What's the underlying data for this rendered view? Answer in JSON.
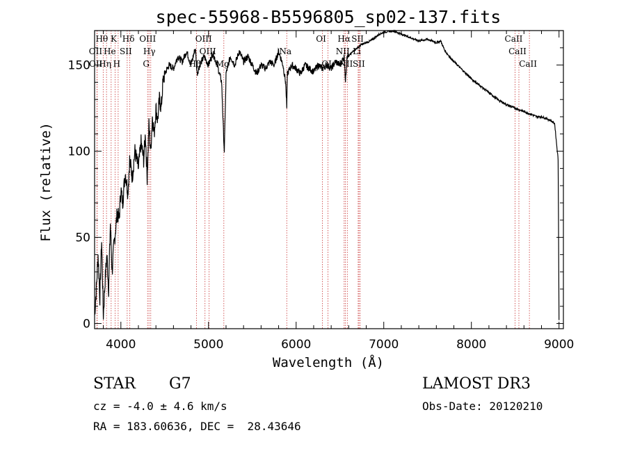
{
  "chart_data": {
    "type": "line",
    "title": "spec-55968-B5596805_sp02-137.fits",
    "xlabel": "Wavelength (Å)",
    "ylabel": "Flux (relative)",
    "xlim": [
      3700,
      9050
    ],
    "ylim": [
      -3,
      170
    ],
    "xticks": [
      4000,
      5000,
      6000,
      7000,
      8000,
      9000
    ],
    "yticks": [
      0,
      50,
      100,
      150
    ],
    "series": [
      {
        "name": "flux",
        "x": [
          3700,
          3720,
          3740,
          3760,
          3780,
          3800,
          3820,
          3840,
          3860,
          3880,
          3900,
          3920,
          3940,
          3960,
          3980,
          4000,
          4020,
          4050,
          4080,
          4100,
          4130,
          4160,
          4200,
          4230,
          4260,
          4280,
          4300,
          4320,
          4340,
          4360,
          4380,
          4400,
          4420,
          4440,
          4460,
          4480,
          4500,
          4550,
          4600,
          4650,
          4700,
          4750,
          4800,
          4850,
          4870,
          4900,
          4950,
          5000,
          5050,
          5100,
          5150,
          5170,
          5180,
          5190,
          5200,
          5250,
          5300,
          5350,
          5400,
          5450,
          5500,
          5550,
          5600,
          5650,
          5700,
          5750,
          5800,
          5850,
          5880,
          5893,
          5900,
          5950,
          6000,
          6050,
          6100,
          6150,
          6200,
          6250,
          6300,
          6350,
          6400,
          6450,
          6500,
          6550,
          6563,
          6580,
          6600,
          6650,
          6700,
          6750,
          6800,
          6850,
          6900,
          6950,
          7000,
          7100,
          7200,
          7300,
          7400,
          7500,
          7600,
          7650,
          7700,
          7800,
          7900,
          8000,
          8100,
          8200,
          8300,
          8400,
          8500,
          8550,
          8600,
          8650,
          8700,
          8750,
          8800,
          8850,
          8900,
          8950,
          8990,
          9000
        ],
        "y": [
          5,
          20,
          40,
          15,
          48,
          5,
          25,
          40,
          20,
          58,
          30,
          45,
          55,
          65,
          60,
          78,
          70,
          88,
          76,
          95,
          85,
          100,
          90,
          105,
          95,
          110,
          85,
          115,
          100,
          120,
          110,
          125,
          118,
          130,
          125,
          140,
          145,
          150,
          148,
          155,
          152,
          158,
          150,
          160,
          145,
          150,
          155,
          150,
          157,
          150,
          140,
          112,
          100,
          120,
          145,
          155,
          150,
          158,
          152,
          155,
          150,
          145,
          150,
          148,
          152,
          150,
          158,
          150,
          140,
          125,
          145,
          150,
          148,
          145,
          150,
          148,
          146,
          150,
          148,
          150,
          148,
          152,
          150,
          155,
          140,
          156,
          155,
          158,
          160,
          162,
          163,
          164,
          166,
          168,
          169,
          170,
          168,
          166,
          164,
          165,
          163,
          164,
          158,
          152,
          147,
          142,
          138,
          134,
          130,
          127,
          125,
          124,
          123,
          122,
          121,
          120,
          120,
          119,
          118,
          116,
          95,
          2
        ]
      }
    ],
    "spectral_lines": [
      {
        "label": "Hθ",
        "wavelength": 3798,
        "row": 1
      },
      {
        "label": "OII",
        "wavelength": 3727,
        "row": 2
      },
      {
        "label": "OII",
        "wavelength": 3729,
        "row": 3
      },
      {
        "label": "Hη",
        "wavelength": 3836,
        "row": 3
      },
      {
        "label": "He",
        "wavelength": 3889,
        "row": 2
      },
      {
        "label": "K",
        "wavelength": 3934,
        "row": 1
      },
      {
        "label": "H",
        "wavelength": 3969,
        "row": 3
      },
      {
        "label": "SII",
        "wavelength": 4072,
        "row": 2
      },
      {
        "label": "Hδ",
        "wavelength": 4102,
        "row": 1
      },
      {
        "label": "OIII",
        "wavelength": 4321,
        "row": 1
      },
      {
        "label": "Hγ",
        "wavelength": 4341,
        "row": 2
      },
      {
        "label": "G",
        "wavelength": 4305,
        "row": 3
      },
      {
        "label": "OIII",
        "wavelength": 4960,
        "row": 1
      },
      {
        "label": "OIII",
        "wavelength": 5007,
        "row": 2
      },
      {
        "label": "Hβ",
        "wavelength": 4862,
        "row": 3
      },
      {
        "label": "Mg",
        "wavelength": 5175,
        "row": 3
      },
      {
        "label": "Na",
        "wavelength": 5893,
        "row": 2
      },
      {
        "label": "OI",
        "wavelength": 6300,
        "row": 1
      },
      {
        "label": "OI",
        "wavelength": 6364,
        "row": 3
      },
      {
        "label": "Hα",
        "wavelength": 6563,
        "row": 1
      },
      {
        "label": "SII",
        "wavelength": 6717,
        "row": 1
      },
      {
        "label": "NII",
        "wavelength": 6548,
        "row": 2
      },
      {
        "label": "NII",
        "wavelength": 6584,
        "row": 3
      },
      {
        "label": "Li",
        "wavelength": 6708,
        "row": 2
      },
      {
        "label": "SII",
        "wavelength": 6731,
        "row": 3
      },
      {
        "label": "CaII",
        "wavelength": 8498,
        "row": 1
      },
      {
        "label": "CaII",
        "wavelength": 8542,
        "row": 2
      },
      {
        "label": "CaII",
        "wavelength": 8662,
        "row": 3
      }
    ]
  },
  "info": {
    "object_class": "STAR",
    "subclass": "G7",
    "velocity": "cz = -4.0 ± 4.6 km/s",
    "coordinates": "RA = 183.60636, DEC =  28.43646",
    "survey": "LAMOST DR3",
    "obs_date": "Obs-Date: 20120210"
  },
  "colors": {
    "spectrum": "#000000",
    "line_marker": "#c83232"
  }
}
